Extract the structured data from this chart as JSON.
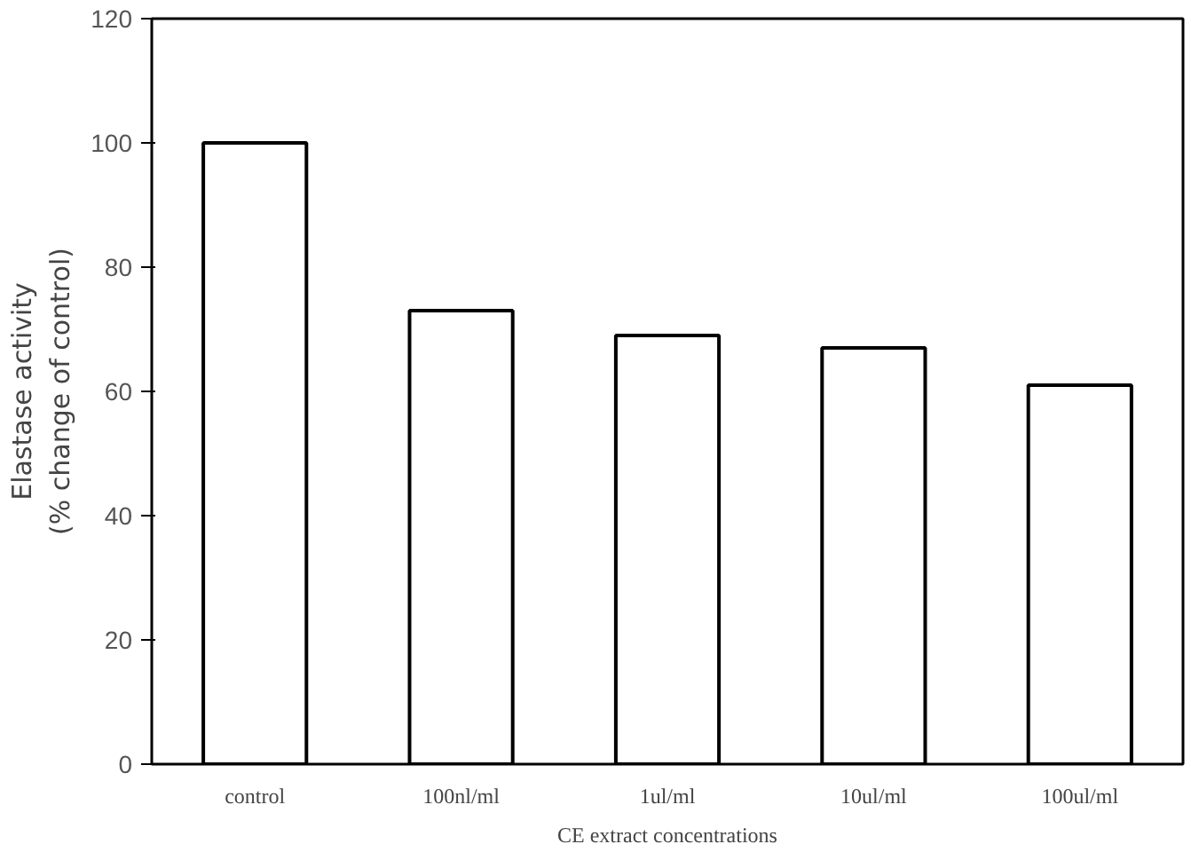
{
  "chart_data": {
    "type": "bar",
    "xlabel": "CE extract concentrations",
    "ylabel": "Elastase activity\n(% change of control)",
    "categories": [
      "control",
      "100nl/ml",
      "1ul/ml",
      "10ul/ml",
      "100ul/ml"
    ],
    "values": [
      100,
      73,
      69,
      67,
      61
    ],
    "color": "#ffffff",
    "ylim": [
      0,
      120
    ],
    "yticks": [
      0,
      20,
      40,
      60,
      80,
      100,
      120
    ],
    "grid": false
  }
}
